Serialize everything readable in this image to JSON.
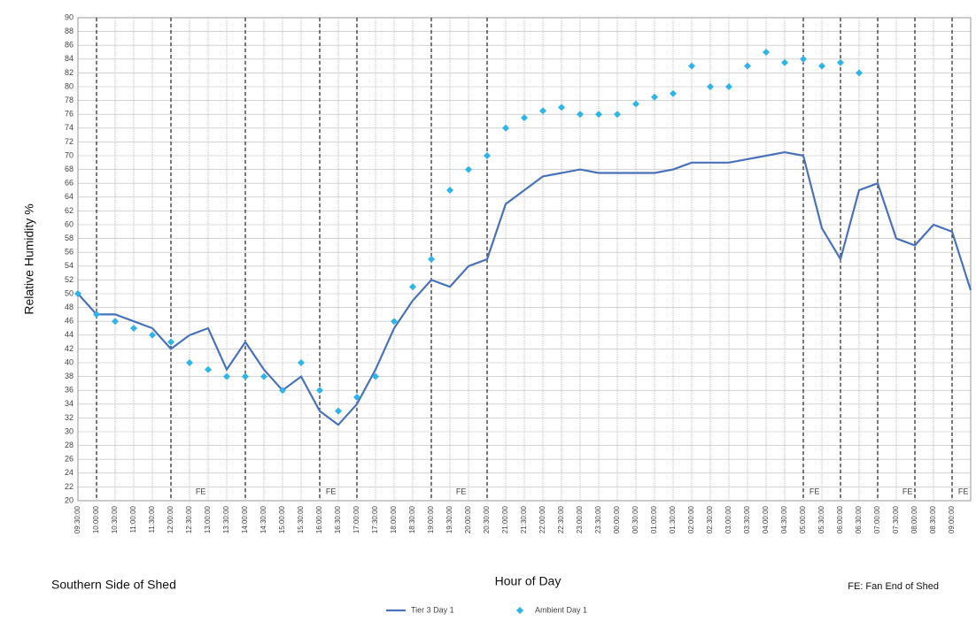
{
  "chart_data": {
    "type": "line",
    "y_label": "Relative Humidity %",
    "x_label": "Hour of Day",
    "left_note": "Southern Side of Shed",
    "right_note": "FE: Fan End of Shed",
    "categories": [
      "09:30:00",
      "10:00:00",
      "10:30:00",
      "11:00:00",
      "11:30:00",
      "12:00:00",
      "12:30:00",
      "13:00:00",
      "13:30:00",
      "14:00:00",
      "14:30:00",
      "15:00:00",
      "15:30:00",
      "16:00:00",
      "16:30:00",
      "17:00:00",
      "17:30:00",
      "18:00:00",
      "18:30:00",
      "19:00:00",
      "19:30:00",
      "20:00:00",
      "20:30:00",
      "21:00:00",
      "21:30:00",
      "22:00:00",
      "22:30:00",
      "23:00:00",
      "23:30:00",
      "00:00:00",
      "00:30:00",
      "01:00:00",
      "01:30:00",
      "02:00:00",
      "02:30:00",
      "03:00:00",
      "03:30:00",
      "04:00:00",
      "04:30:00",
      "05:00:00",
      "05:30:00",
      "06:00:00",
      "06:30:00",
      "07:00:00",
      "07:30:00",
      "08:00:00",
      "08:30:00",
      "09:00:00",
      null
    ],
    "series": [
      {
        "name": "Tier 3  Day 1",
        "color": "#4a72b8",
        "style": "line",
        "values": [
          50,
          47,
          47,
          46,
          45,
          42,
          44,
          45,
          39,
          43,
          39,
          36,
          38,
          33,
          31,
          34,
          39,
          45,
          49,
          52,
          51,
          54,
          55,
          63,
          65,
          67,
          67.5,
          68,
          67.5,
          67.5,
          67.5,
          67.5,
          68,
          69,
          69,
          69,
          69.5,
          70,
          70.5,
          70,
          59.5,
          55,
          65,
          66,
          58,
          57,
          60,
          59,
          50.5
        ]
      },
      {
        "name": "Ambient Day 1",
        "color": "#2fb4e8",
        "style": "markers",
        "values": [
          50,
          47,
          46,
          45,
          44,
          43,
          40,
          39,
          38,
          38,
          38,
          36,
          40,
          36,
          33,
          35,
          38,
          46,
          51,
          55,
          65,
          68,
          70,
          74,
          75.5,
          76.5,
          77,
          76,
          76,
          76,
          77.5,
          78.5,
          79,
          83,
          80,
          80,
          83,
          85,
          83.5,
          84,
          83,
          83.5,
          82,
          null,
          null,
          null,
          null,
          null,
          null
        ]
      }
    ],
    "fan_end_lines": [
      "10:00:00",
      "12:00:00",
      "14:00:00",
      "16:00:00",
      "17:00:00",
      "19:00:00",
      "20:30:00",
      "05:00:00",
      "06:00:00",
      "07:00:00",
      "08:00:00",
      "09:00:00"
    ],
    "annotations": [
      {
        "text": "FE",
        "x": "12:30:00"
      },
      {
        "text": "FE",
        "x": "16:00:00"
      },
      {
        "text": "FE",
        "x": "19:30:00"
      },
      {
        "text": "FE",
        "x": "05:00:00"
      },
      {
        "text": "FE",
        "x": "07:30:00"
      },
      {
        "text": "FE",
        "x": "09:00:00"
      }
    ],
    "ylim": [
      20,
      90
    ],
    "yticks": [
      20,
      22,
      24,
      26,
      28,
      30,
      32,
      34,
      36,
      38,
      40,
      42,
      44,
      46,
      48,
      50,
      52,
      54,
      56,
      58,
      60,
      62,
      64,
      66,
      68,
      70,
      72,
      74,
      76,
      78,
      80,
      82,
      84,
      86,
      88,
      90
    ],
    "grid": true
  }
}
